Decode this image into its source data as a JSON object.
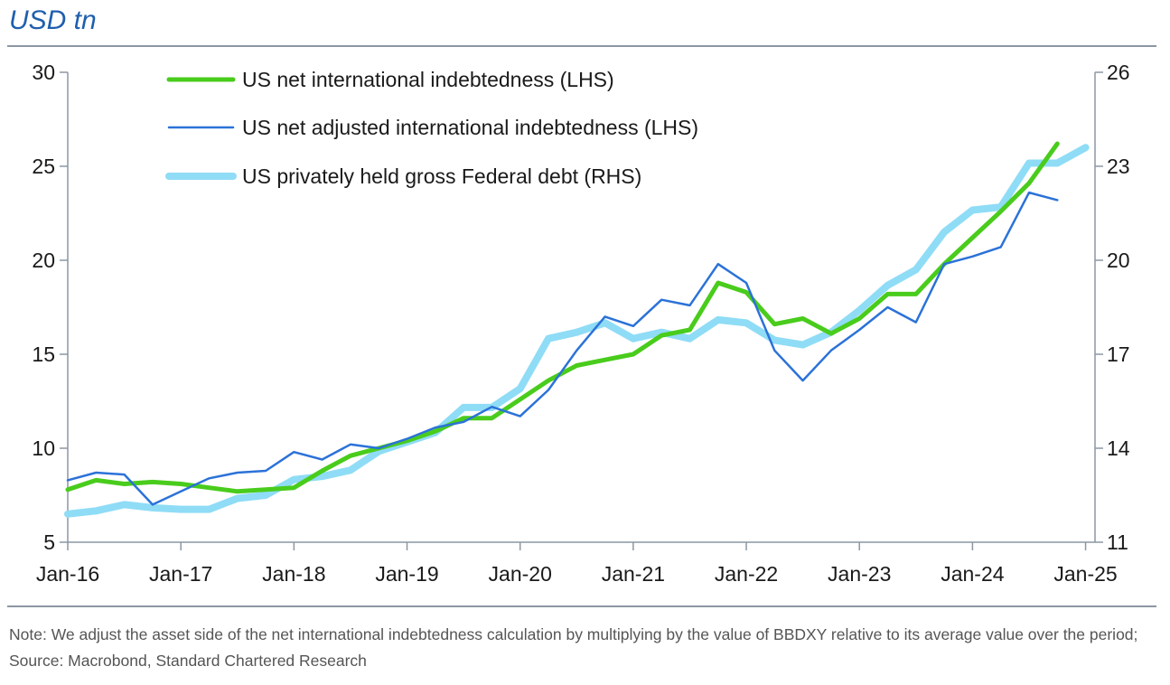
{
  "header": {
    "unit_label": "USD tn"
  },
  "footer": {
    "note": "Note: We adjust the asset side of the net international indebtedness calculation by multiplying by the value of BBDXY relative to its average value over the period; Source: Macrobond, Standard Chartered Research"
  },
  "chart_data": {
    "type": "line",
    "title": "USD tn",
    "xlabel": "",
    "ylabel_left": "USD tn",
    "ylabel_right": "USD tn",
    "x_tick_labels": [
      "Jan-16",
      "Jan-17",
      "Jan-18",
      "Jan-19",
      "Jan-20",
      "Jan-21",
      "Jan-22",
      "Jan-23",
      "Jan-24",
      "Jan-25"
    ],
    "y_left_ticks": [
      5,
      10,
      15,
      20,
      25,
      30
    ],
    "y_right_ticks": [
      11,
      14,
      17,
      20,
      23,
      26
    ],
    "ylim_left": [
      5,
      30
    ],
    "ylim_right": [
      11,
      26
    ],
    "xlim_months": [
      0,
      109
    ],
    "legend_position": "top-left",
    "series": [
      {
        "name": "US net international indebtedness (LHS)",
        "axis": "left",
        "color": "#49cc1c",
        "x_months": [
          0,
          3,
          6,
          9,
          12,
          15,
          18,
          21,
          24,
          27,
          30,
          33,
          36,
          39,
          42,
          45,
          48,
          51,
          54,
          57,
          60,
          63,
          66,
          69,
          72,
          75,
          78,
          81,
          84,
          87,
          90,
          93,
          96,
          99,
          102,
          105
        ],
        "values": [
          7.8,
          8.3,
          8.1,
          8.2,
          8.1,
          7.9,
          7.7,
          7.8,
          7.9,
          8.8,
          9.6,
          10.0,
          10.4,
          10.9,
          11.6,
          11.6,
          12.6,
          13.6,
          14.4,
          14.7,
          15.0,
          16.0,
          16.3,
          18.8,
          18.3,
          16.6,
          16.9,
          16.1,
          16.9,
          18.2,
          18.2,
          19.8,
          21.2,
          22.6,
          24.1,
          26.2
        ]
      },
      {
        "name": "US net adjusted international indebtedness (LHS)",
        "axis": "left",
        "color": "#2b72d8",
        "x_months": [
          0,
          3,
          6,
          9,
          12,
          15,
          18,
          21,
          24,
          27,
          30,
          33,
          36,
          39,
          42,
          45,
          48,
          51,
          54,
          57,
          60,
          63,
          66,
          69,
          72,
          75,
          78,
          81,
          84,
          87,
          90,
          93,
          96,
          99,
          102,
          105
        ],
        "values": [
          8.3,
          8.7,
          8.6,
          7.0,
          7.7,
          8.4,
          8.7,
          8.8,
          9.8,
          9.4,
          10.2,
          10.0,
          10.5,
          11.1,
          11.4,
          12.2,
          11.7,
          13.1,
          15.2,
          17.0,
          16.5,
          17.9,
          17.6,
          19.8,
          18.8,
          15.2,
          13.6,
          15.2,
          16.3,
          17.5,
          16.7,
          19.8,
          20.2,
          20.7,
          23.6,
          23.2
        ]
      },
      {
        "name": "US privately held gross Federal debt (RHS)",
        "axis": "right",
        "color": "#8fdcf6",
        "x_months": [
          0,
          3,
          6,
          9,
          12,
          15,
          18,
          21,
          24,
          27,
          30,
          33,
          36,
          39,
          42,
          45,
          48,
          51,
          54,
          57,
          60,
          63,
          66,
          69,
          72,
          75,
          78,
          81,
          84,
          87,
          90,
          93,
          96,
          99,
          102,
          105,
          108
        ],
        "values": [
          11.9,
          12.0,
          12.2,
          12.1,
          12.05,
          12.05,
          12.4,
          12.5,
          13.0,
          13.1,
          13.3,
          13.9,
          14.2,
          14.5,
          15.3,
          15.3,
          15.9,
          17.5,
          17.7,
          18.0,
          17.5,
          17.7,
          17.5,
          18.1,
          18.0,
          17.45,
          17.3,
          17.7,
          18.4,
          19.2,
          19.7,
          20.9,
          21.6,
          21.7,
          23.1,
          23.1,
          23.6
        ]
      }
    ]
  }
}
